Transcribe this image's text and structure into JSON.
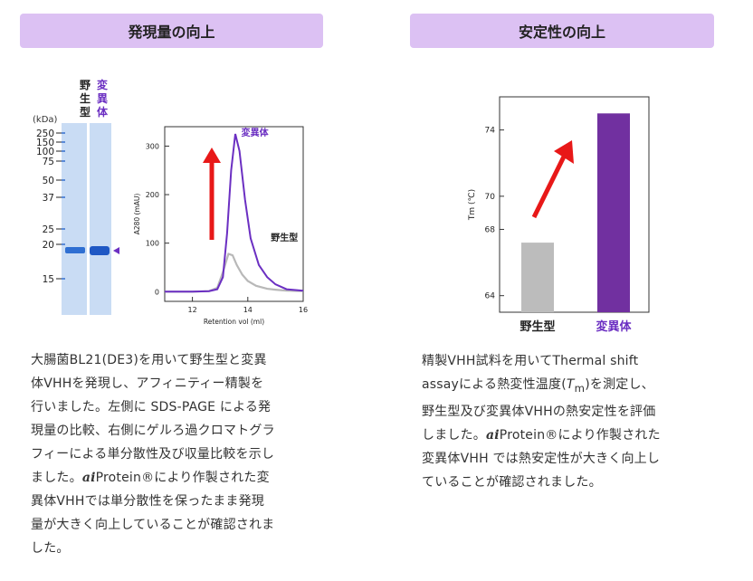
{
  "left": {
    "header": "発現量の向上",
    "gel": {
      "unit_label": "(kDa)",
      "lane_labels": [
        "野生型",
        "変異体"
      ],
      "markers": [
        "250",
        "150",
        "100",
        "75",
        "50",
        "37",
        "25",
        "20",
        "15"
      ]
    },
    "desc": [
      "大腸菌BL21(DE3)を用いて野生型と変異",
      "体VHHを発現し、アフィニティー精製を",
      "行いました。左側に SDS-PAGE による発",
      "現量の比較、右側にゲルろ過クロマトグラ",
      "フィーによる単分散性及び収量比較を示し",
      "ました。",
      "aiProtein®により作製された変",
      "異体VHHでは単分散性を保ったまま発現",
      "量が大きく向上していることが確認されま",
      "した。"
    ],
    "desc_brand": "ai",
    "desc_after_brand": "Protein®により作製された変"
  },
  "right": {
    "header": "安定性の向上",
    "desc": [
      "精製VHH試料を用いてThermal shift",
      "assayによる熱変性温度(",
      "を測定し、",
      "野生型及び変異体VHHの熱安定性を評価",
      "しました。",
      "Protein®により作製された",
      "変異体VHH では熱安定性が大きく向上し",
      "ていることが確認されました。"
    ],
    "tm_symbol": "T",
    "tm_sub": "m",
    "brand": "ai"
  },
  "chart_data": [
    {
      "type": "line",
      "xlabel": "Retention vol (ml)",
      "ylabel": "A280 (mAU)",
      "xlim": [
        11,
        16
      ],
      "ylim": [
        -20,
        340
      ],
      "xticks": [
        12,
        14,
        16
      ],
      "yticks": [
        0,
        100,
        200,
        300
      ],
      "series": [
        {
          "name": "変異体",
          "color": "#6b2fc2",
          "x": [
            11.0,
            12.0,
            12.6,
            12.9,
            13.1,
            13.25,
            13.4,
            13.55,
            13.7,
            13.9,
            14.1,
            14.4,
            14.7,
            15.0,
            15.4,
            16.0
          ],
          "y": [
            0,
            0,
            1,
            5,
            30,
            120,
            250,
            325,
            290,
            190,
            110,
            55,
            30,
            15,
            5,
            2
          ]
        },
        {
          "name": "野生型",
          "color": "#b8b8b8",
          "x": [
            11.0,
            12.0,
            12.6,
            12.9,
            13.1,
            13.3,
            13.45,
            13.6,
            13.8,
            14.0,
            14.3,
            14.7,
            15.0,
            15.4,
            16.0
          ],
          "y": [
            0,
            0,
            1,
            8,
            40,
            78,
            75,
            55,
            35,
            22,
            12,
            6,
            4,
            2,
            1
          ]
        }
      ]
    },
    {
      "type": "bar",
      "categories": [
        "野生型",
        "変異体"
      ],
      "values": [
        67.2,
        75.0
      ],
      "colors": [
        "#bcbcbc",
        "#7130a0"
      ],
      "ylabel": "Tm (℃)",
      "ylim": [
        63,
        76
      ],
      "yticks": [
        64,
        68,
        70,
        74
      ]
    }
  ]
}
